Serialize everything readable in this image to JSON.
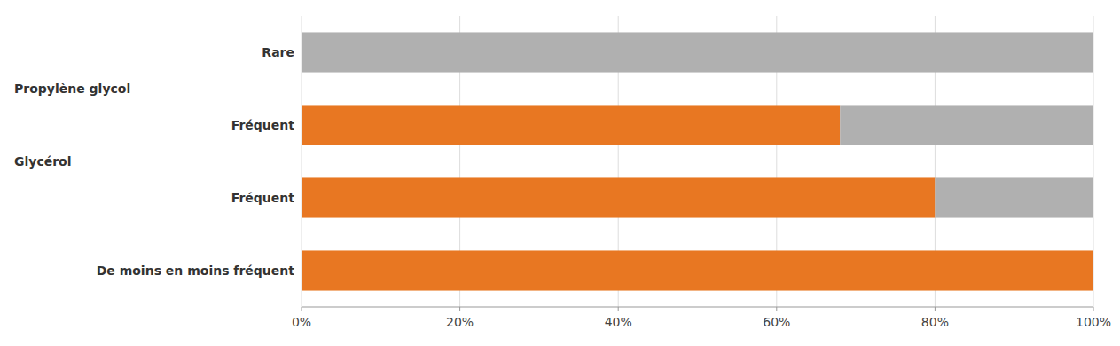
{
  "chart_data": {
    "type": "bar",
    "orientation": "horizontal",
    "stacked": true,
    "categories": [
      "Rare",
      "Fréquent",
      "Fréquent",
      "De moins en moins fréquent"
    ],
    "series": [
      {
        "color": "#E87722",
        "values": [
          0.0,
          68.0,
          80.0,
          100.0
        ]
      },
      {
        "color": "#B0B0B0",
        "values": [
          100.0,
          32.0,
          20.0,
          0.0
        ]
      }
    ],
    "annotations": [
      "Propylène glycol",
      "Glycérol"
    ],
    "xlim": [
      0,
      100
    ],
    "xticks": [
      {
        "value": 0,
        "label": "0%"
      },
      {
        "value": 20,
        "label": "20%"
      },
      {
        "value": 40,
        "label": "40%"
      },
      {
        "value": 60,
        "label": "60%"
      },
      {
        "value": 80,
        "label": "80%"
      },
      {
        "value": 100,
        "label": "100%"
      }
    ],
    "grid": true,
    "tick_labels": "x"
  }
}
